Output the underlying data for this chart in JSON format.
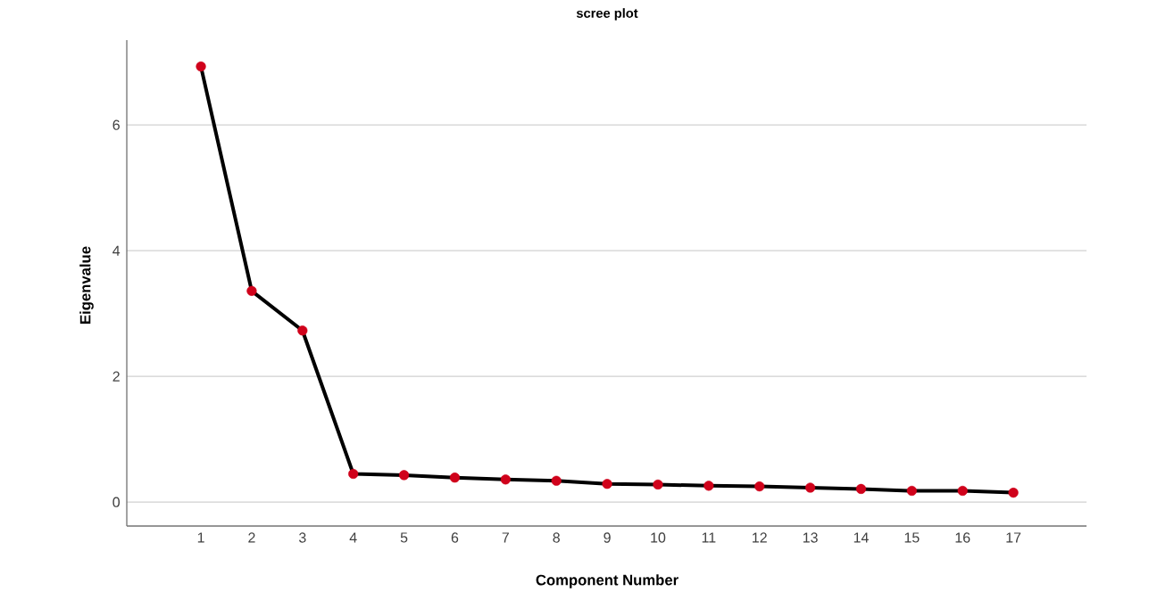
{
  "chart_data": {
    "type": "line",
    "title": "scree plot",
    "xlabel": "Component Number",
    "ylabel": "Eigenvalue",
    "categories": [
      "1",
      "2",
      "3",
      "4",
      "5",
      "6",
      "7",
      "8",
      "9",
      "10",
      "11",
      "12",
      "13",
      "14",
      "15",
      "16",
      "17"
    ],
    "series": [
      {
        "color": "#000000",
        "colors": [
          "#d0021b",
          "#d0021b",
          "#d0021b",
          "#d0021b",
          "#d0021b",
          "#d0021b",
          "#d0021b",
          "#d0021b",
          "#d0021b",
          "#d0021b",
          "#d0021b",
          "#d0021b",
          "#d0021b",
          "#d0021b",
          "#d0021b",
          "#d0021b",
          "#d0021b"
        ],
        "values": [
          6.93,
          3.36,
          2.73,
          0.45,
          0.43,
          0.39,
          0.36,
          0.34,
          0.29,
          0.28,
          0.26,
          0.25,
          0.23,
          0.21,
          0.18,
          0.18,
          0.15
        ]
      }
    ],
    "ylim": [
      -0.38,
      7.35
    ],
    "yticks": [
      0,
      2,
      4,
      6
    ],
    "grid": "y",
    "marker": "circle",
    "line_style": "solid"
  }
}
